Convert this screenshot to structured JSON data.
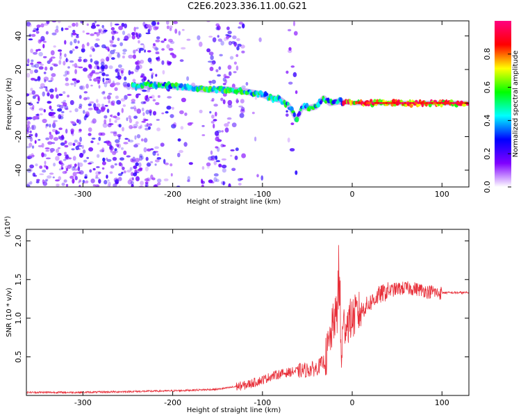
{
  "title": "C2E6.2023.336.11.00.G21",
  "chart_data": [
    {
      "type": "heatmap",
      "xlabel": "Height of straight line (km)",
      "ylabel": "Frequency (Hz)",
      "xlim": [
        -363,
        130
      ],
      "ylim": [
        -50,
        49
      ],
      "xticks": [
        -300,
        -200,
        -100,
        0,
        100
      ],
      "yticks": [
        -40,
        -20,
        0,
        20,
        40
      ],
      "xtick_labels": [
        "-300",
        "-200",
        "-100",
        "0",
        "100"
      ],
      "ytick_labels": [
        "-40",
        "-20",
        "0",
        "20",
        "40"
      ],
      "colorbar": {
        "label": "Normalized spectral amplitude",
        "range": [
          0,
          1
        ],
        "ticks": [
          0,
          0.2,
          0.4,
          0.6,
          0.8
        ],
        "tick_labels": [
          "0.0",
          "0.2",
          "0.4",
          "0.6",
          "0.8"
        ],
        "colors": [
          "#ffffff",
          "#8000ff",
          "#0000ff",
          "#00ffff",
          "#00ff00",
          "#ffff00",
          "#ff0000",
          "#ff0080"
        ]
      },
      "ridge": {
        "x": [
          -240,
          -220,
          -200,
          -180,
          -160,
          -140,
          -120,
          -100,
          -90,
          -80,
          -70,
          -62,
          -55,
          -48,
          -40,
          -32,
          -25,
          -15,
          0,
          50,
          100,
          130
        ],
        "y": [
          10,
          11,
          10,
          9,
          8,
          8,
          7,
          5,
          3,
          2,
          -2,
          -10,
          -2,
          -3,
          -2,
          3,
          0,
          1,
          0,
          0,
          0,
          0
        ]
      }
    },
    {
      "type": "line",
      "xlabel": "Height of straight line (km)",
      "ylabel": "SNR (10 * v/v)",
      "multiplier_label": "(x10⁴)",
      "xlim": [
        -363,
        130
      ],
      "ylim": [
        0,
        2.15
      ],
      "xticks": [
        -300,
        -200,
        -100,
        0,
        100
      ],
      "yticks": [
        0.5,
        1.0,
        1.5,
        2.0
      ],
      "xtick_labels": [
        "-300",
        "-200",
        "-100",
        "0",
        "100"
      ],
      "ytick_labels": [
        "0.5",
        "1.0",
        "1.5",
        "2.0"
      ],
      "series": [
        {
          "color": "#e8303a",
          "x": [
            -363,
            -300,
            -250,
            -200,
            -150,
            -120,
            -100,
            -90,
            -80,
            -70,
            -60,
            -50,
            -40,
            -30,
            -25,
            -20,
            -15,
            -12,
            -10,
            0,
            10,
            20,
            30,
            40,
            50,
            60,
            70,
            80,
            85,
            90,
            95,
            100,
            110,
            120,
            130
          ],
          "y": [
            0.04,
            0.04,
            0.05,
            0.06,
            0.08,
            0.13,
            0.2,
            0.25,
            0.28,
            0.3,
            0.32,
            0.33,
            0.35,
            0.45,
            0.7,
            1.0,
            1.05,
            0.5,
            0.9,
            1.0,
            1.1,
            1.2,
            1.3,
            1.35,
            1.38,
            1.39,
            1.38,
            1.36,
            1.34,
            1.35,
            1.32,
            1.33,
            1.33,
            1.33,
            1.33
          ]
        }
      ]
    }
  ]
}
